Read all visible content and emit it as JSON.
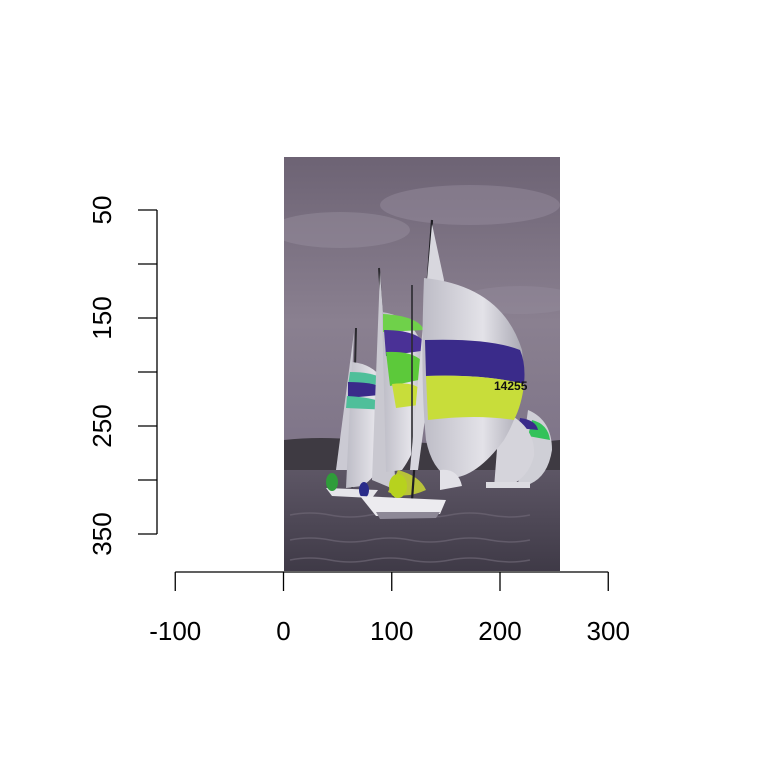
{
  "chart_data": {
    "type": "image",
    "title": "",
    "xlabel": "",
    "ylabel": "",
    "image": {
      "description": "Sailboats racing with colourful spinnakers (purple, lime, teal)",
      "sail_number": "14255",
      "x_range": [
        0,
        256
      ],
      "y_range": [
        0,
        384
      ]
    },
    "x_axis": {
      "ticks": [
        -100,
        0,
        100,
        200,
        300
      ],
      "tick_labels": [
        "-100",
        "0",
        "100",
        "200",
        "300"
      ]
    },
    "y_axis": {
      "reversed": true,
      "ticks": [
        50,
        100,
        150,
        200,
        250,
        300,
        350
      ],
      "labeled_ticks": [
        50,
        150,
        250,
        350
      ],
      "tick_labels": [
        "50",
        "150",
        "250",
        "350"
      ]
    },
    "colors": {
      "sky": "#7a6f80",
      "sea": "#56505e",
      "spinnaker_purple": "#3a2b8a",
      "spinnaker_lime": "#c8dd3a",
      "spinnaker_green": "#6fd14a",
      "spinnaker_teal": "#4fbf9a",
      "sail_white": "#d9d8df"
    }
  }
}
